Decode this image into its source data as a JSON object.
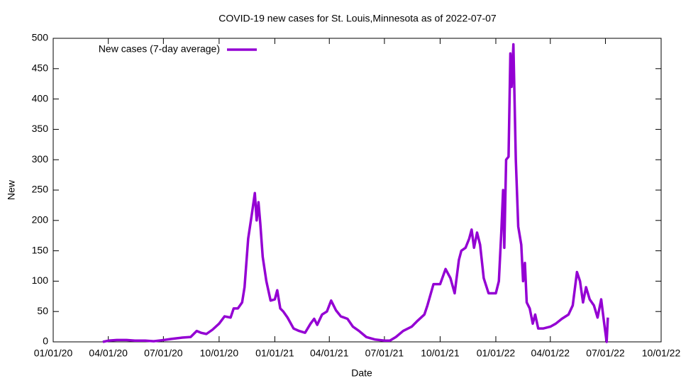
{
  "chart_data": {
    "type": "line",
    "title": "COVID-19 new cases for St. Louis,Minnesota as of 2022-07-07",
    "x_label": "Date",
    "y_label": "New",
    "legend": "top-left",
    "grid": false,
    "xlim": [
      "2020-01-01",
      "2022-10-01"
    ],
    "ylim": [
      0,
      500
    ],
    "xticks": [
      {
        "value": "2020-01-01",
        "label": "01/01/20"
      },
      {
        "value": "2020-04-01",
        "label": "04/01/20"
      },
      {
        "value": "2020-07-01",
        "label": "07/01/20"
      },
      {
        "value": "2020-10-01",
        "label": "10/01/20"
      },
      {
        "value": "2021-01-01",
        "label": "01/01/21"
      },
      {
        "value": "2021-04-01",
        "label": "04/01/21"
      },
      {
        "value": "2021-07-01",
        "label": "07/01/21"
      },
      {
        "value": "2021-10-01",
        "label": "10/01/21"
      },
      {
        "value": "2022-01-01",
        "label": "01/01/22"
      },
      {
        "value": "2022-04-01",
        "label": "04/01/22"
      },
      {
        "value": "2022-07-01",
        "label": "07/01/22"
      },
      {
        "value": "2022-10-01",
        "label": "10/01/22"
      }
    ],
    "yticks": [
      0,
      50,
      100,
      150,
      200,
      250,
      300,
      350,
      400,
      450,
      500
    ],
    "x": [
      "2020-03-23",
      "2020-04-01",
      "2020-04-15",
      "2020-05-01",
      "2020-05-15",
      "2020-06-01",
      "2020-06-15",
      "2020-07-01",
      "2020-07-15",
      "2020-08-01",
      "2020-08-15",
      "2020-08-25",
      "2020-09-01",
      "2020-09-10",
      "2020-09-20",
      "2020-10-01",
      "2020-10-10",
      "2020-10-20",
      "2020-10-25",
      "2020-11-01",
      "2020-11-08",
      "2020-11-12",
      "2020-11-18",
      "2020-11-24",
      "2020-11-29",
      "2020-12-02",
      "2020-12-05",
      "2020-12-08",
      "2020-12-12",
      "2020-12-18",
      "2020-12-25",
      "2021-01-01",
      "2021-01-05",
      "2021-01-10",
      "2021-01-15",
      "2021-01-22",
      "2021-02-01",
      "2021-02-10",
      "2021-02-20",
      "2021-03-01",
      "2021-03-07",
      "2021-03-12",
      "2021-03-20",
      "2021-03-28",
      "2021-04-04",
      "2021-04-12",
      "2021-04-20",
      "2021-05-01",
      "2021-05-10",
      "2021-05-20",
      "2021-06-01",
      "2021-06-15",
      "2021-07-01",
      "2021-07-10",
      "2021-07-20",
      "2021-08-01",
      "2021-08-15",
      "2021-08-25",
      "2021-09-05",
      "2021-09-10",
      "2021-09-20",
      "2021-10-01",
      "2021-10-10",
      "2021-10-18",
      "2021-10-25",
      "2021-11-01",
      "2021-11-05",
      "2021-11-12",
      "2021-11-18",
      "2021-11-22",
      "2021-11-26",
      "2021-12-01",
      "2021-12-06",
      "2021-12-12",
      "2021-12-20",
      "2022-01-01",
      "2022-01-06",
      "2022-01-10",
      "2022-01-13",
      "2022-01-15",
      "2022-01-18",
      "2022-01-22",
      "2022-01-25",
      "2022-01-27",
      "2022-01-30",
      "2022-02-03",
      "2022-02-07",
      "2022-02-12",
      "2022-02-15",
      "2022-02-18",
      "2022-02-21",
      "2022-02-26",
      "2022-03-03",
      "2022-03-07",
      "2022-03-12",
      "2022-03-20",
      "2022-04-01",
      "2022-04-10",
      "2022-04-20",
      "2022-05-01",
      "2022-05-08",
      "2022-05-15",
      "2022-05-20",
      "2022-05-25",
      "2022-05-30",
      "2022-06-05",
      "2022-06-12",
      "2022-06-18",
      "2022-06-24",
      "2022-06-29",
      "2022-07-03",
      "2022-07-05"
    ],
    "series": [
      {
        "name": "New cases (7-day average)",
        "color": "#9400d3",
        "values": [
          0,
          2,
          3,
          3,
          2,
          2,
          1,
          3,
          5,
          7,
          8,
          18,
          15,
          13,
          20,
          30,
          42,
          40,
          55,
          55,
          65,
          90,
          170,
          210,
          245,
          200,
          230,
          195,
          140,
          100,
          68,
          70,
          85,
          55,
          50,
          40,
          22,
          18,
          15,
          30,
          38,
          28,
          45,
          50,
          68,
          52,
          42,
          38,
          25,
          18,
          8,
          4,
          2,
          2,
          8,
          18,
          25,
          35,
          45,
          60,
          95,
          95,
          120,
          105,
          80,
          135,
          150,
          155,
          170,
          185,
          155,
          180,
          160,
          105,
          80,
          80,
          100,
          180,
          250,
          155,
          300,
          305,
          475,
          420,
          490,
          300,
          190,
          160,
          100,
          130,
          65,
          55,
          30,
          45,
          22,
          22,
          25,
          30,
          38,
          45,
          60,
          115,
          100,
          65,
          90,
          70,
          60,
          40,
          70,
          30,
          0,
          40
        ]
      }
    ]
  }
}
